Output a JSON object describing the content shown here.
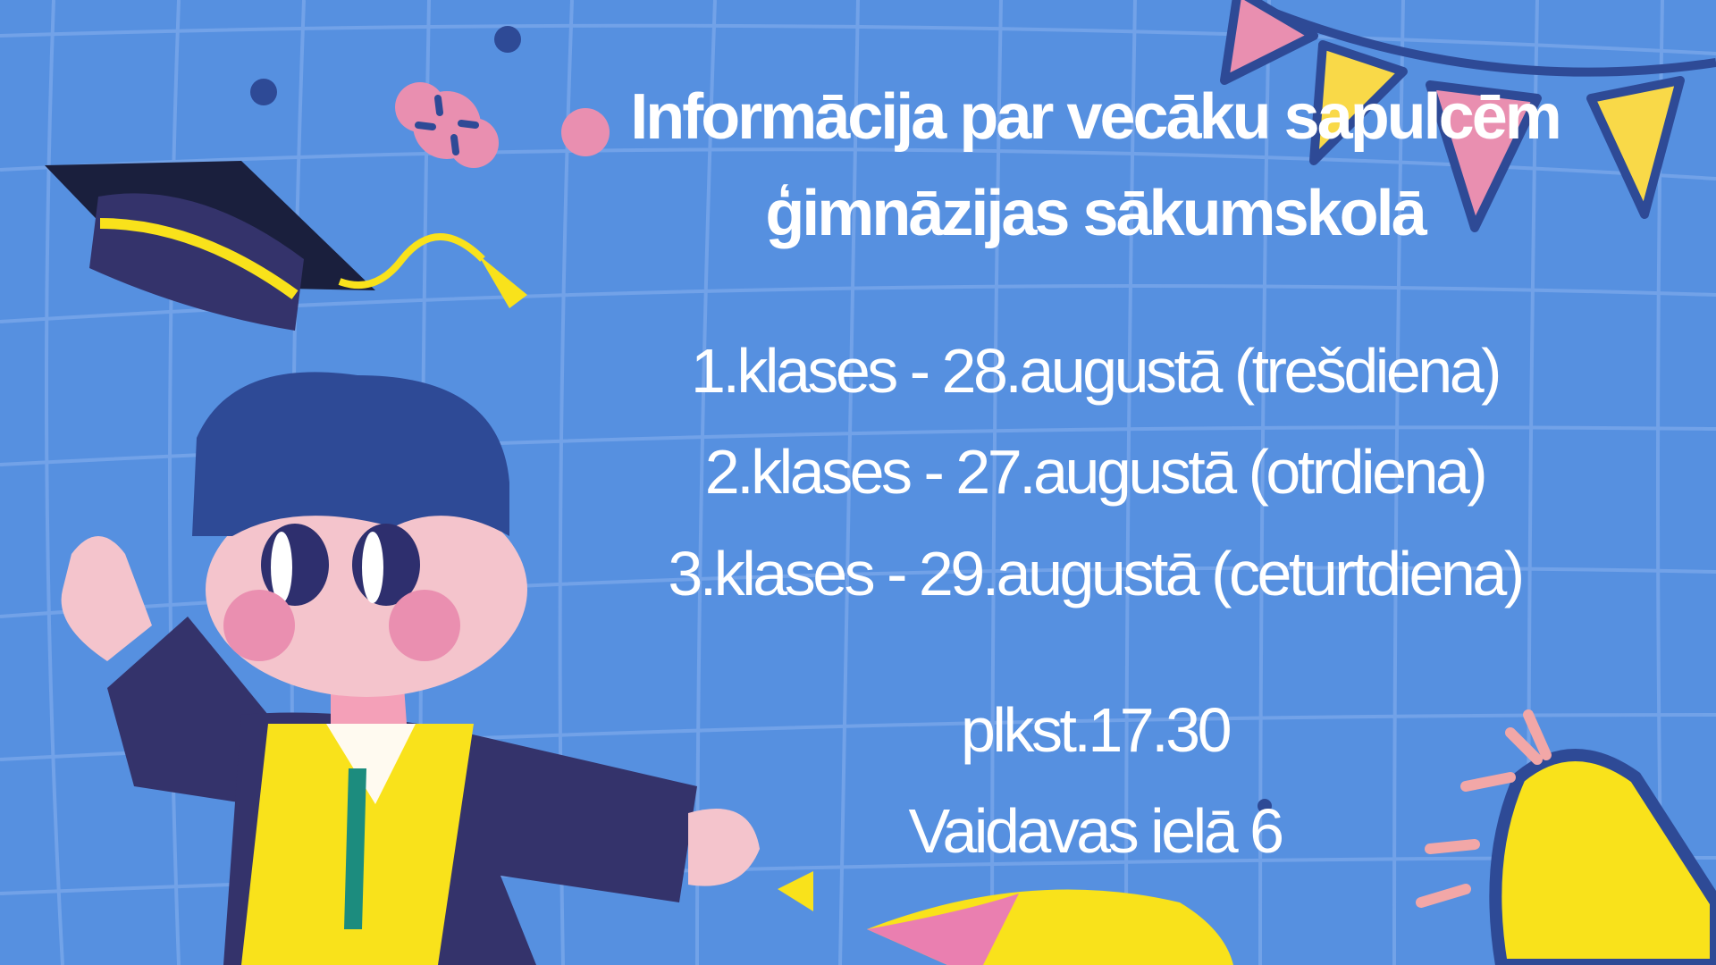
{
  "title": {
    "line1": "Informācija par vecāku sapulcēm",
    "line2": "ģimnāzijas sākumskolā"
  },
  "schedule": [
    "1.klases - 28.augustā (trešdiena)",
    "2.klases - 27.augustā (otrdiena)",
    "3.klases - 29.augustā (ceturtdiena)"
  ],
  "time": "plkst.17.30",
  "address": "Vaidavas ielā 6",
  "colors": {
    "background": "#5690e0",
    "grid": "#7aa8ea",
    "navy": "#2e4a96",
    "pink": "#e98fb0",
    "yellow": "#f9d948",
    "text": "#ffffff"
  },
  "illustrations": [
    "graduation-cap-icon",
    "graduate-boy-illustration",
    "bunting-flags-icon",
    "megaphone-icon",
    "flower-sparkle-icon"
  ]
}
